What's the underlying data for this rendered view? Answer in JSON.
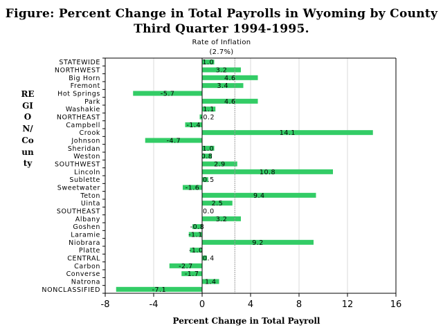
{
  "chart_data": {
    "type": "bar",
    "orientation": "horizontal",
    "title": "Figure:  Percent Change in Total Payrolls in Wyoming by County",
    "subtitle": "Third Quarter 1994-1995.",
    "xlabel": "Percent Change in Total Payroll",
    "ylabel": "REGION/County",
    "xlim": [
      -8,
      16
    ],
    "xticks": [
      "-8",
      "-4",
      "0",
      "4",
      "8",
      "12",
      "16"
    ],
    "reference_line": {
      "value": 2.7,
      "label_line1": "Rate of Inflation",
      "label_line2": "(2.7%)"
    },
    "bar_color": "#33cc66",
    "categories": [
      "STATEWIDE",
      "NORTHWEST",
      "Big Horn",
      "Fremont",
      "Hot Springs",
      "Park",
      "Washakie",
      "NORTHEAST",
      "Campbell",
      "Crook",
      "Johnson",
      "Sheridan",
      "Weston",
      "SOUTHWEST",
      "Lincoln",
      "Sublette",
      "Sweetwater",
      "Teton",
      "Uinta",
      "SOUTHEAST",
      "Albany",
      "Goshen",
      "Laramie",
      "Niobrara",
      "Platte",
      "CENTRAL",
      "Carbon",
      "Converse",
      "Natrona",
      "NONCLASSIFIED"
    ],
    "values": [
      1.0,
      3.2,
      4.6,
      3.4,
      -5.7,
      4.6,
      1.1,
      -0.2,
      -1.4,
      14.1,
      -4.7,
      1.0,
      0.8,
      2.9,
      10.8,
      0.5,
      -1.6,
      9.4,
      2.5,
      0.0,
      3.2,
      -0.8,
      -1.1,
      9.2,
      -1.0,
      0.4,
      -2.7,
      -1.7,
      1.4,
      -7.1
    ],
    "value_labels": [
      "1.0",
      "3.2",
      "4.6",
      "3.4",
      "-5.7",
      "4.6",
      "1.1",
      "-0.2",
      "-1.4",
      "14.1",
      "-4.7",
      "1.0",
      "0.8",
      "2.9",
      "10.8",
      "0.5",
      "-1.6",
      "9.4",
      "2.5",
      "0.0",
      "3.2",
      "-0.8",
      "-1.1",
      "9.2",
      "-1.0",
      "0.4",
      "-2.7",
      "-1.7",
      "1.4",
      "-7.1"
    ]
  }
}
